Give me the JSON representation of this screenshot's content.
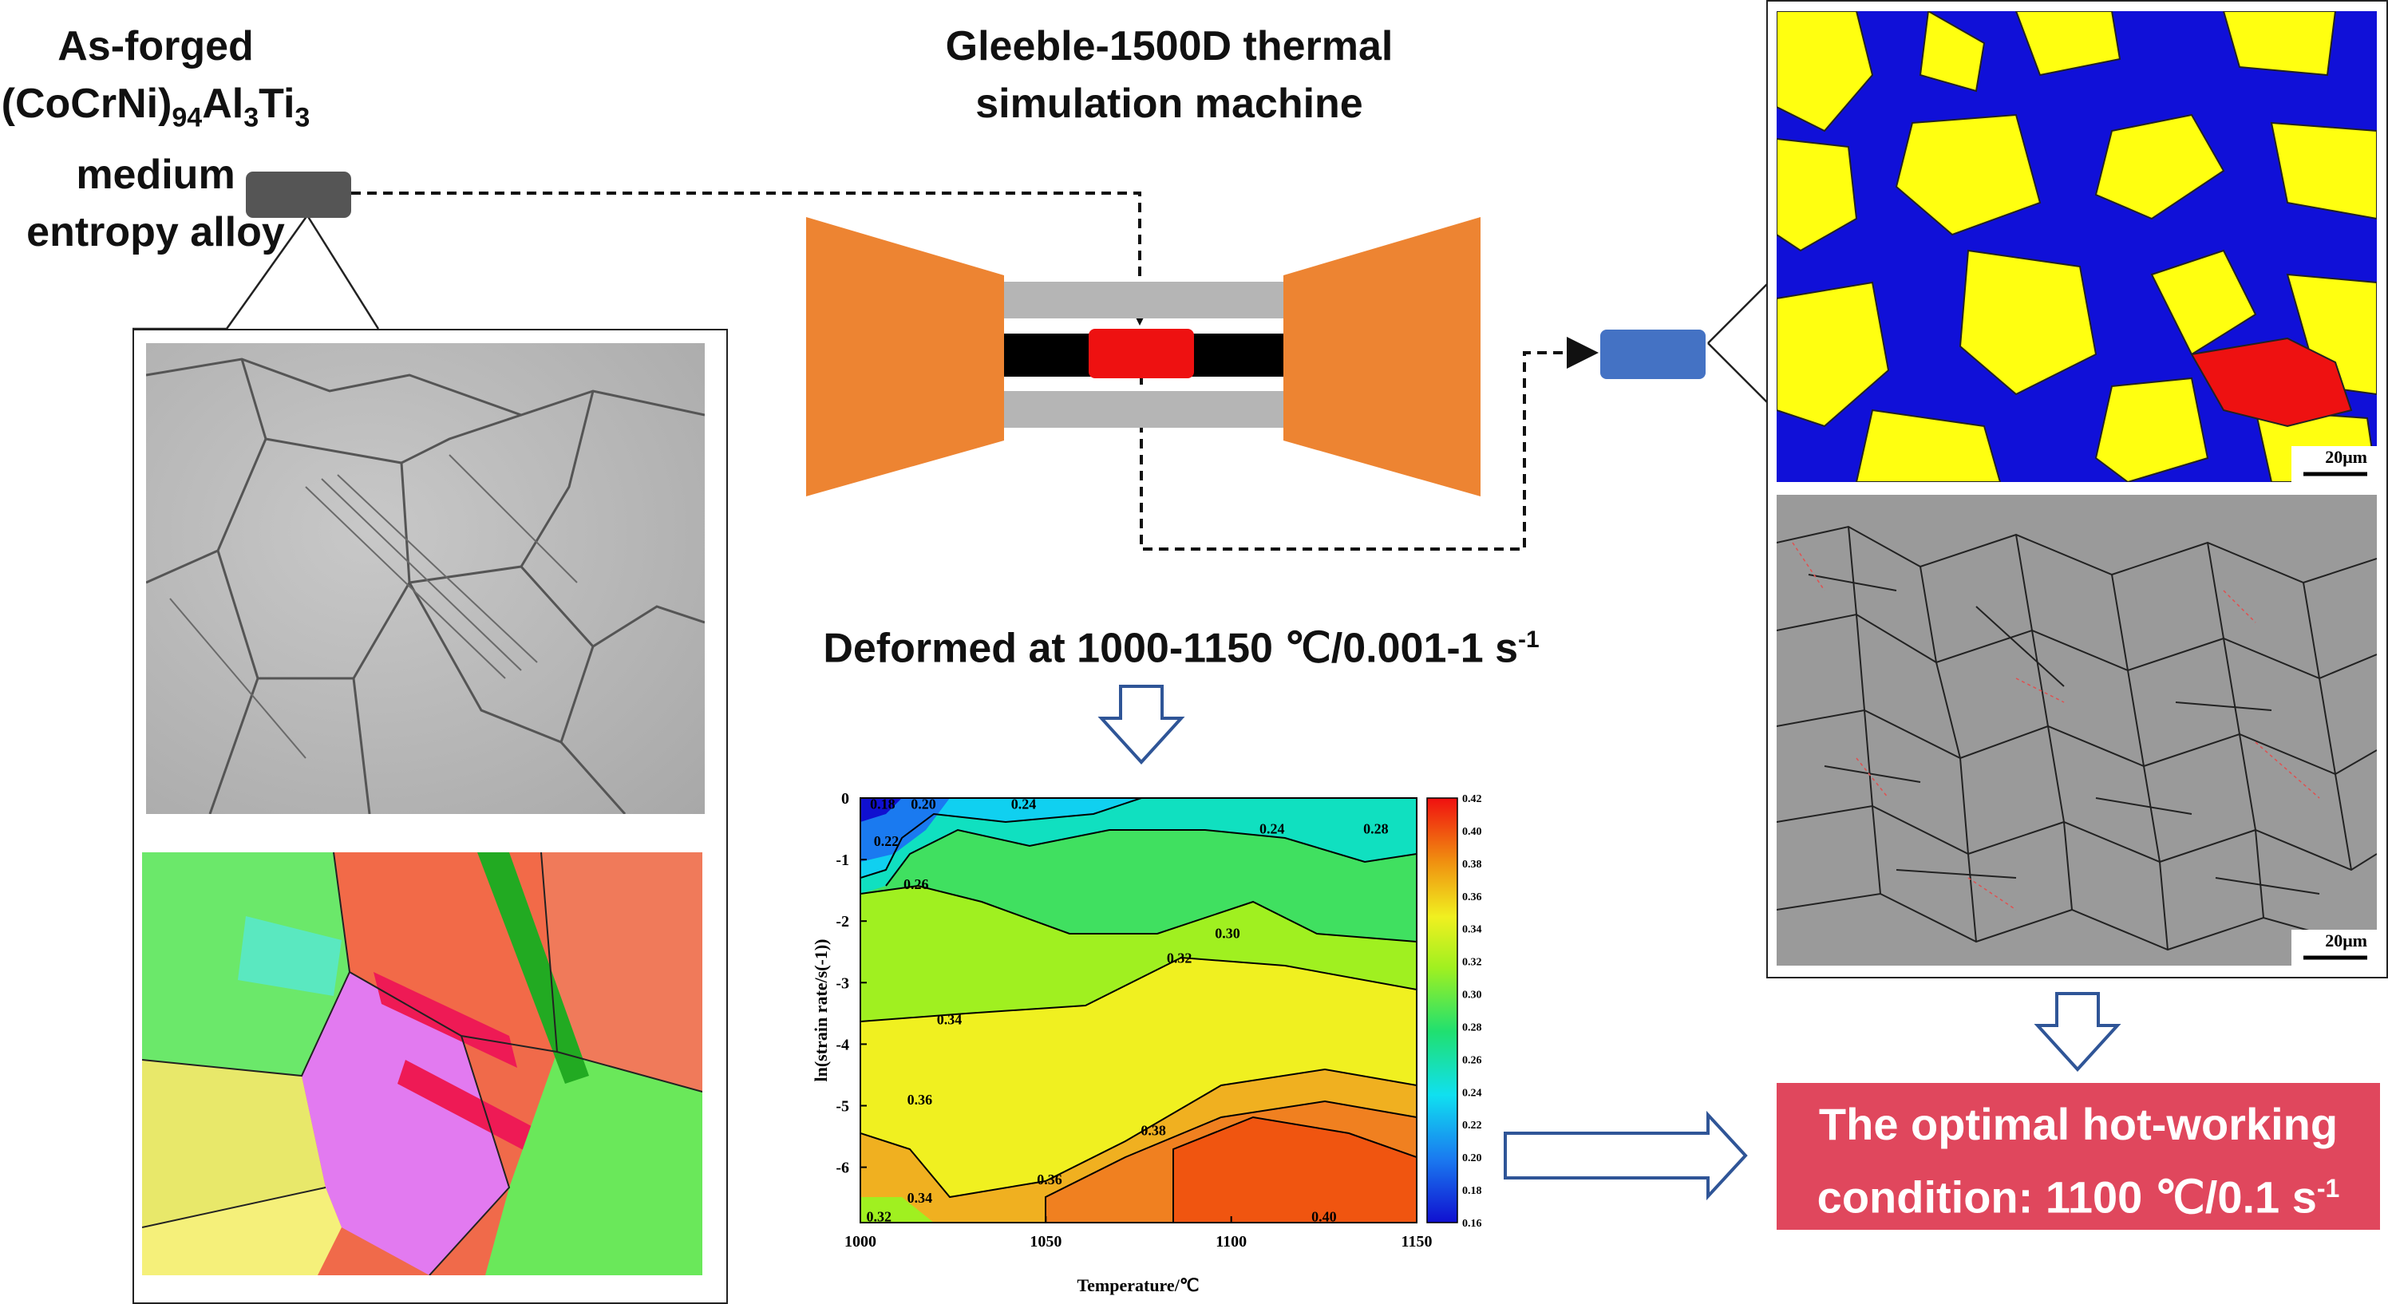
{
  "left": {
    "title_line1_prefix": "As-forged (CoCrNi)",
    "title_sub1": "94",
    "title_mid": "Al",
    "title_sub2": "3",
    "title_tail": "Ti",
    "title_sub3": "3",
    "title_line2": "medium entropy alloy"
  },
  "machine": {
    "title_line1": "Gleeble-1500D thermal",
    "title_line2": "simulation machine"
  },
  "deform": {
    "text": "Deformed at 1000-1150 ℃/0.001-1 s",
    "sup": "-1"
  },
  "ebsd": {
    "scale_top": "20μm",
    "scale_bottom": "20μm"
  },
  "result": {
    "line1": "The optimal hot-working",
    "line2": "condition: 1100 ℃/0.1 s",
    "sup": "-1"
  },
  "colors": {
    "specimen_dark": "#555555",
    "specimen_hot": "#ee1111",
    "specimen_blue": "#4472c4",
    "anvil": "#ed8432",
    "result_box": "#e0475d",
    "arrow_outline": "#2f5597"
  },
  "chart_data": {
    "type": "heatmap",
    "subtype": "contour",
    "xlabel": "Temperature/℃",
    "ylabel": "ln(strain rate/s(-1))",
    "xlim": [
      1000,
      1150
    ],
    "ylim": [
      -6.9,
      0
    ],
    "x_ticks": [
      "1000",
      "1050",
      "1100",
      "1150"
    ],
    "y_ticks": [
      "0",
      "-1",
      "-2",
      "-3",
      "-4",
      "-5",
      "-6"
    ],
    "colorbar": {
      "min": 0.16,
      "max": 0.42,
      "ticks": [
        "0.42",
        "0.40",
        "0.38",
        "0.36",
        "0.34",
        "0.32",
        "0.30",
        "0.28",
        "0.26",
        "0.24",
        "0.22",
        "0.20",
        "0.18",
        "0.16"
      ]
    },
    "contour_labels": [
      {
        "text": "0.18",
        "x": 1006,
        "y": -0.1
      },
      {
        "text": "0.20",
        "x": 1017,
        "y": -0.1
      },
      {
        "text": "0.24",
        "x": 1044,
        "y": -0.1
      },
      {
        "text": "0.22",
        "x": 1007,
        "y": -0.7
      },
      {
        "text": "0.26",
        "x": 1015,
        "y": -1.4
      },
      {
        "text": "0.24",
        "x": 1111,
        "y": -0.5
      },
      {
        "text": "0.28",
        "x": 1139,
        "y": -0.5
      },
      {
        "text": "0.30",
        "x": 1099,
        "y": -2.2
      },
      {
        "text": "0.32",
        "x": 1086,
        "y": -2.6
      },
      {
        "text": "0.34",
        "x": 1024,
        "y": -3.6
      },
      {
        "text": "0.36",
        "x": 1016,
        "y": -4.9
      },
      {
        "text": "0.38",
        "x": 1079,
        "y": -5.4
      },
      {
        "text": "0.36",
        "x": 1051,
        "y": -6.2
      },
      {
        "text": "0.34",
        "x": 1016,
        "y": -6.5
      },
      {
        "text": "0.32",
        "x": 1005,
        "y": -6.8
      },
      {
        "text": "0.40",
        "x": 1125,
        "y": -6.8
      }
    ]
  }
}
